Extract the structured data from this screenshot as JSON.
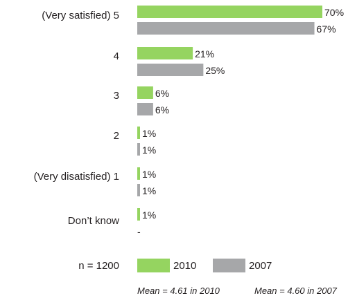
{
  "chart_data": {
    "type": "bar",
    "orientation": "horizontal",
    "categories": [
      "(Very satisfied) 5",
      "4",
      "3",
      "2",
      "(Very disatisfied) 1",
      "Don’t know"
    ],
    "series": [
      {
        "name": "2010",
        "color": "#95d460",
        "values": [
          70,
          21,
          6,
          1,
          1,
          1
        ],
        "labels": [
          "70%",
          "21%",
          "6%",
          "1%",
          "1%",
          "1%"
        ]
      },
      {
        "name": "2007",
        "color": "#a6a7a9",
        "values": [
          67,
          25,
          6,
          1,
          1,
          null
        ],
        "labels": [
          "67%",
          "25%",
          "6%",
          "1%",
          "1%",
          "-"
        ]
      }
    ],
    "xlim": [
      0,
      70
    ],
    "grid": false,
    "legend_position": "bottom",
    "sample_label": "n = 1200",
    "note_2010": "Mean = 4.61 in 2010",
    "note_2007": "Mean = 4.60 in 2007"
  }
}
